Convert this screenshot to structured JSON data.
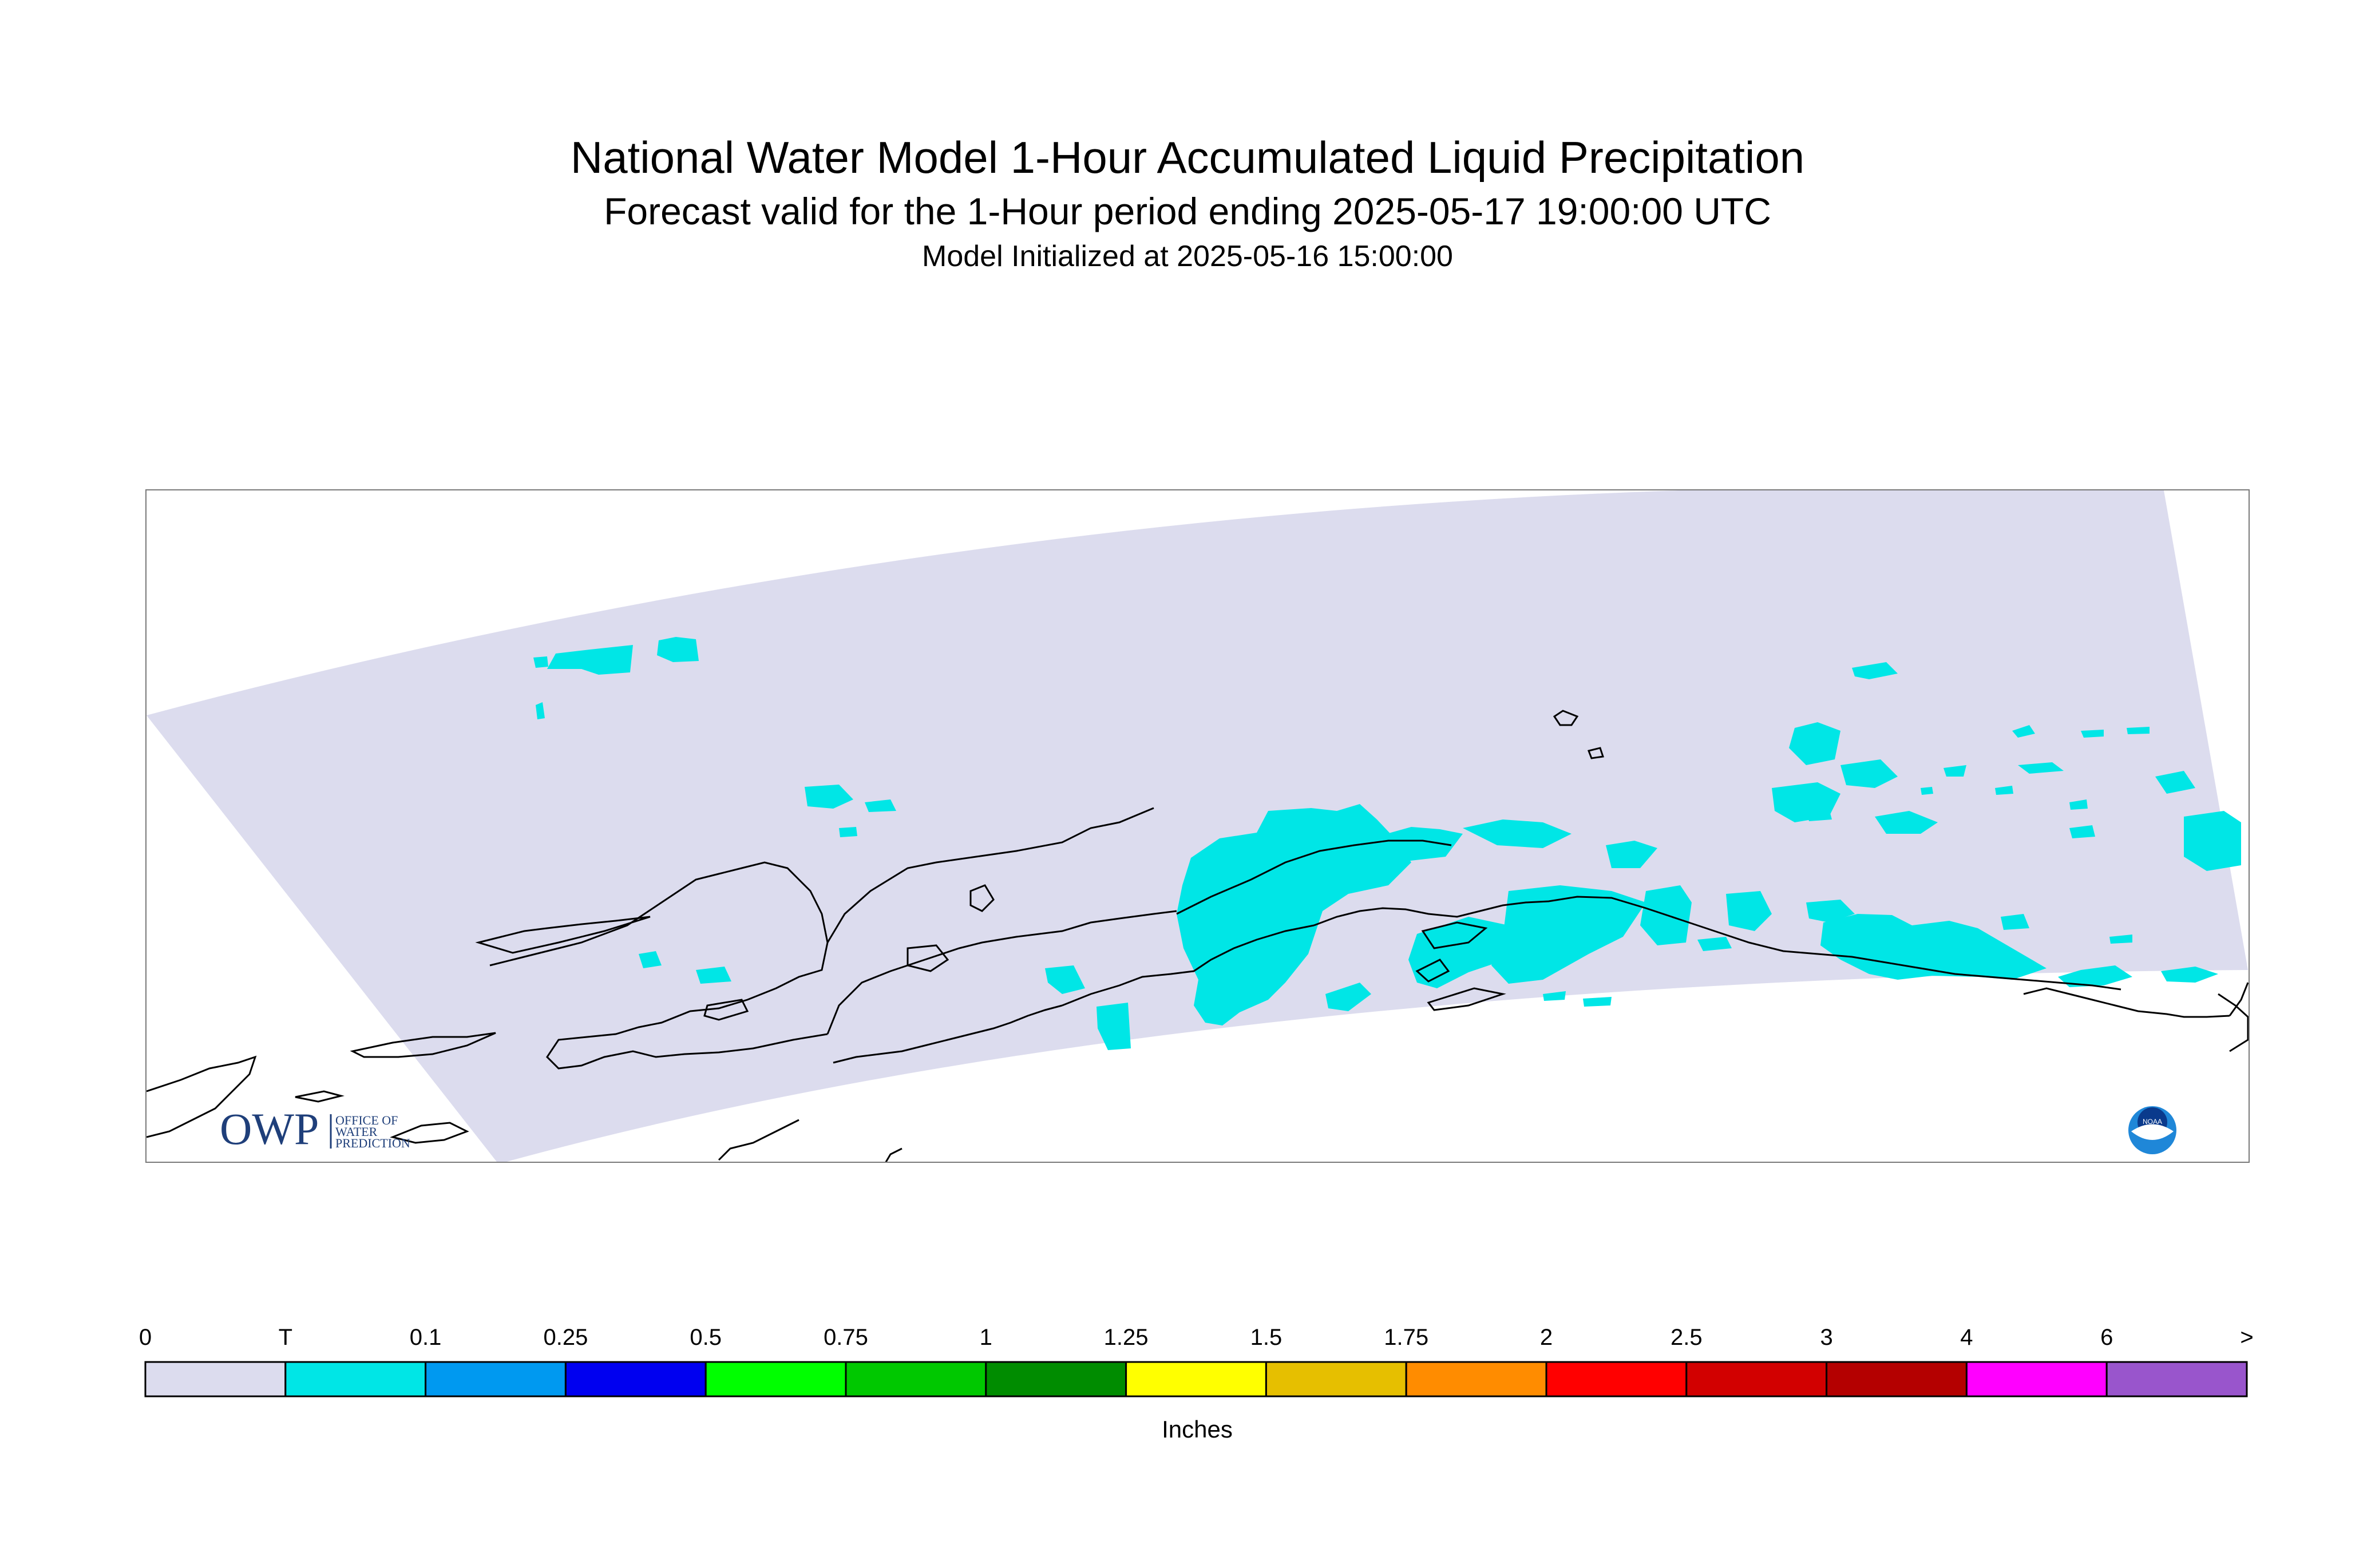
{
  "title": {
    "line1": "National Water Model 1-Hour Accumulated Liquid Precipitation",
    "line2": "Forecast valid for the 1-Hour period ending 2025-05-17 19:00:00 UTC",
    "line3": "Model Initialized at 2025-05-16 15:00:00"
  },
  "logos": {
    "owp": {
      "mark": "OWP",
      "words": [
        "OFFICE OF",
        "WATER",
        "PREDICTION"
      ]
    },
    "noaa": {
      "mark": "NOAA"
    }
  },
  "colorbar": {
    "unit_label": "Inches",
    "tick_labels": [
      "0",
      "T",
      "0.1",
      "0.25",
      "0.5",
      "0.75",
      "1",
      "1.25",
      "1.5",
      "1.75",
      "2",
      "2.5",
      "3",
      "4",
      "6",
      ">"
    ],
    "bins": [
      {
        "color": "#dcdcee"
      },
      {
        "color": "#00e6e6"
      },
      {
        "color": "#0099f0"
      },
      {
        "color": "#0000f0"
      },
      {
        "color": "#00ff00"
      },
      {
        "color": "#00c800"
      },
      {
        "color": "#008c00"
      },
      {
        "color": "#ffff00"
      },
      {
        "color": "#e6bf00"
      },
      {
        "color": "#ff8c00"
      },
      {
        "color": "#ff0000"
      },
      {
        "color": "#d20000"
      },
      {
        "color": "#b40000"
      },
      {
        "color": "#ff00ff"
      },
      {
        "color": "#9955cc"
      }
    ]
  },
  "map": {
    "domain_fill": "#dcdcee",
    "precip_fill": "#00e6e6",
    "coastline_color": "#000000"
  }
}
